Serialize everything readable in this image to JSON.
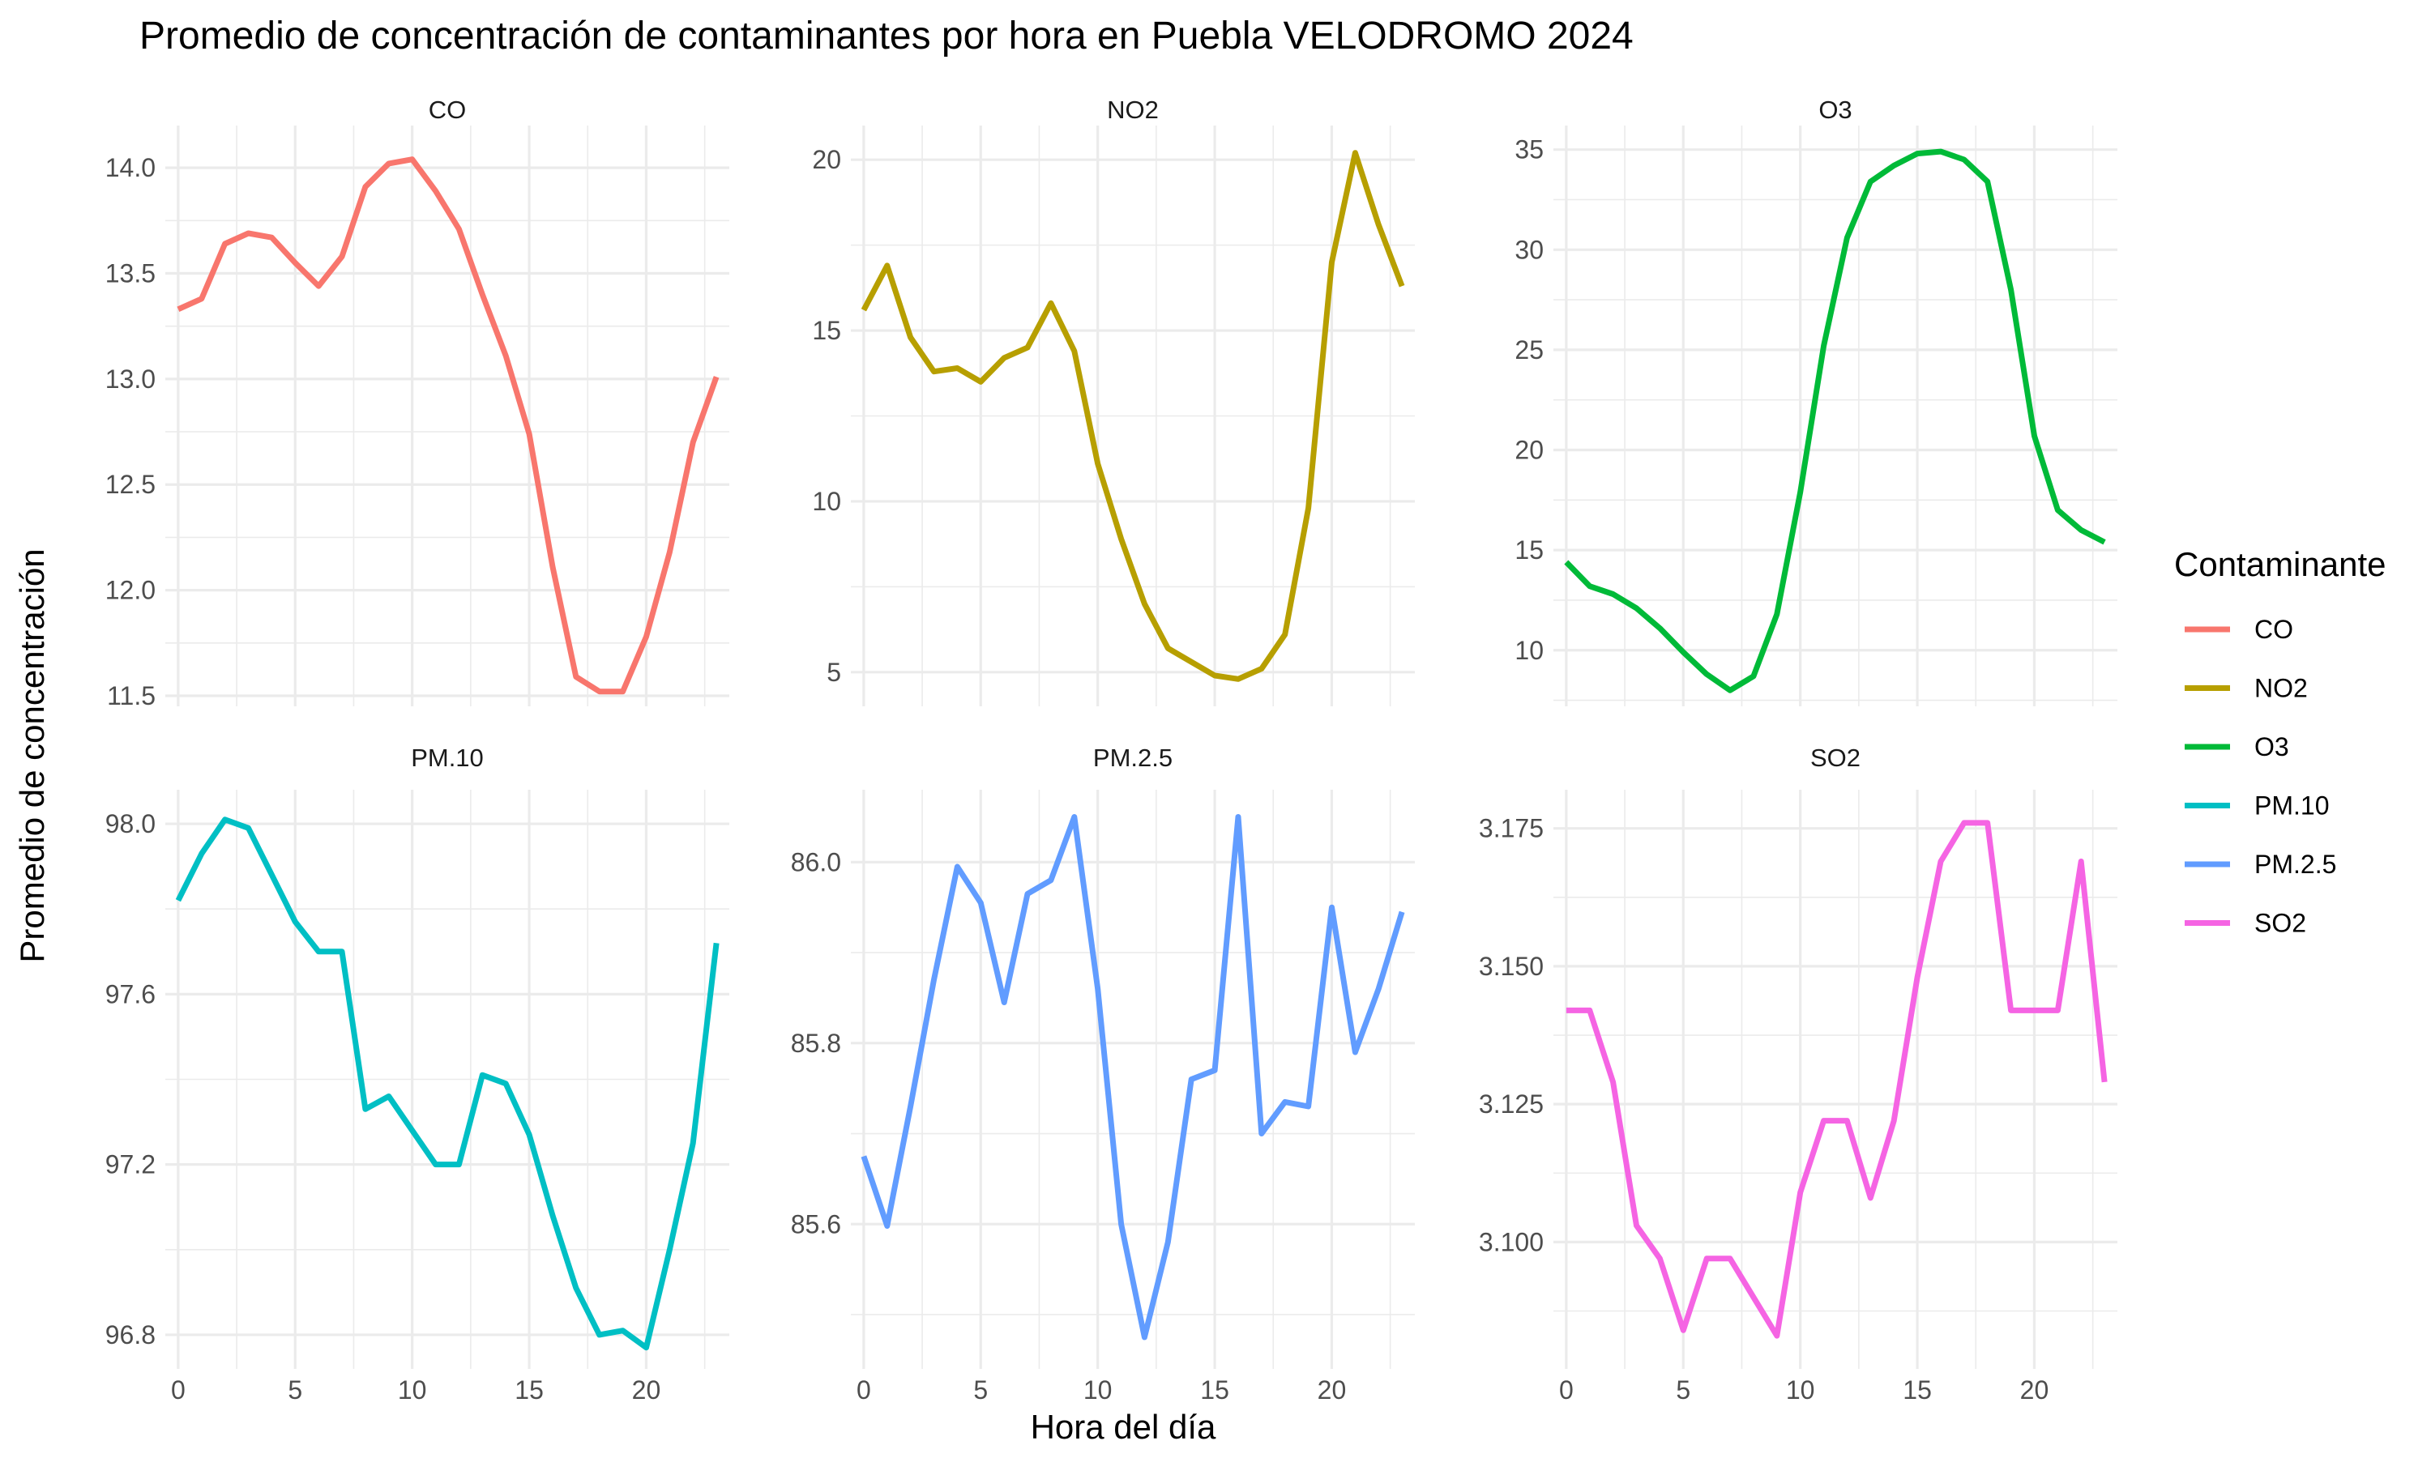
{
  "chart_data": {
    "type": "line",
    "title": "Promedio de concentración de contaminantes por hora en Puebla VELODROMO 2024",
    "xlabel": "Hora del día",
    "ylabel": "Promedio de concentración",
    "legend": {
      "title": "Contaminante",
      "position": "right",
      "entries": [
        "CO",
        "NO2",
        "O3",
        "PM.10",
        "PM.2.5",
        "SO2"
      ]
    },
    "grid": true,
    "x": [
      0,
      1,
      2,
      3,
      4,
      5,
      6,
      7,
      8,
      9,
      10,
      11,
      12,
      13,
      14,
      15,
      16,
      17,
      18,
      19,
      20,
      21,
      22,
      23
    ],
    "x_ticks": [
      0,
      5,
      10,
      15,
      20
    ],
    "xlim": [
      -0.55,
      23.55
    ],
    "panels": [
      {
        "name": "CO",
        "color": "#F8766D",
        "ylim": [
          11.45,
          14.2
        ],
        "y_ticks": [
          11.5,
          12.0,
          12.5,
          13.0,
          13.5,
          14.0
        ],
        "y_tick_labels": [
          "11.5",
          "12.0",
          "12.5",
          "13.0",
          "13.5",
          "14.0"
        ],
        "values": [
          13.33,
          13.38,
          13.64,
          13.69,
          13.67,
          13.55,
          13.44,
          13.58,
          13.91,
          14.02,
          14.04,
          13.89,
          13.71,
          13.4,
          13.11,
          12.74,
          12.11,
          11.59,
          11.52,
          11.52,
          11.78,
          12.18,
          12.7,
          13.01
        ]
      },
      {
        "name": "NO2",
        "color": "#B79F00",
        "ylim": [
          4.0,
          21.0
        ],
        "y_ticks": [
          5,
          10,
          15,
          20
        ],
        "y_tick_labels": [
          "5",
          "10",
          "15",
          "20"
        ],
        "values": [
          15.6,
          16.9,
          14.8,
          13.8,
          13.9,
          13.5,
          14.2,
          14.5,
          15.8,
          14.4,
          11.1,
          8.9,
          7.0,
          5.7,
          5.3,
          4.9,
          4.8,
          5.1,
          6.1,
          9.8,
          17.0,
          20.2,
          18.1,
          16.3
        ]
      },
      {
        "name": "O3",
        "color": "#00BA38",
        "ylim": [
          7.2,
          36.2
        ],
        "y_ticks": [
          10,
          15,
          20,
          25,
          30,
          35
        ],
        "y_tick_labels": [
          "10",
          "15",
          "20",
          "25",
          "30",
          "35"
        ],
        "values": [
          14.4,
          13.2,
          12.8,
          12.1,
          11.1,
          9.9,
          8.8,
          8.0,
          8.7,
          11.8,
          17.9,
          25.2,
          30.6,
          33.4,
          34.2,
          34.8,
          34.9,
          34.5,
          33.4,
          28.0,
          20.7,
          17.0,
          16.0,
          15.4
        ]
      },
      {
        "name": "PM.10",
        "color": "#00BFC4",
        "ylim": [
          96.72,
          98.08
        ],
        "y_ticks": [
          96.8,
          97.2,
          97.6,
          98.0
        ],
        "y_tick_labels": [
          "96.8",
          "97.2",
          "97.6",
          "98.0"
        ],
        "values": [
          97.82,
          97.93,
          98.01,
          97.99,
          97.88,
          97.77,
          97.7,
          97.7,
          97.33,
          97.36,
          97.28,
          97.2,
          97.2,
          97.41,
          97.39,
          97.27,
          97.08,
          96.91,
          96.8,
          96.81,
          96.77,
          97.0,
          97.25,
          97.72
        ]
      },
      {
        "name": "PM.2.5",
        "color": "#619CFF",
        "ylim": [
          85.44,
          86.08
        ],
        "y_ticks": [
          85.6,
          85.8,
          86.0
        ],
        "y_tick_labels": [
          "85.6",
          "85.8",
          "86.0"
        ],
        "values": [
          85.675,
          85.598,
          85.73,
          85.87,
          85.995,
          85.955,
          85.845,
          85.965,
          85.98,
          86.05,
          85.86,
          85.6,
          85.475,
          85.58,
          85.76,
          85.77,
          86.05,
          85.7,
          85.735,
          85.73,
          85.95,
          85.79,
          85.86,
          85.945
        ]
      },
      {
        "name": "SO2",
        "color": "#F564E3",
        "ylim": [
          3.077,
          3.182
        ],
        "y_ticks": [
          3.1,
          3.125,
          3.15,
          3.175
        ],
        "y_tick_labels": [
          "3.100",
          "3.125",
          "3.150",
          "3.175"
        ],
        "values": [
          3.142,
          3.142,
          3.129,
          3.103,
          3.097,
          3.084,
          3.097,
          3.097,
          3.09,
          3.083,
          3.109,
          3.122,
          3.122,
          3.108,
          3.122,
          3.148,
          3.169,
          3.176,
          3.176,
          3.142,
          3.142,
          3.142,
          3.169,
          3.129
        ]
      }
    ]
  }
}
